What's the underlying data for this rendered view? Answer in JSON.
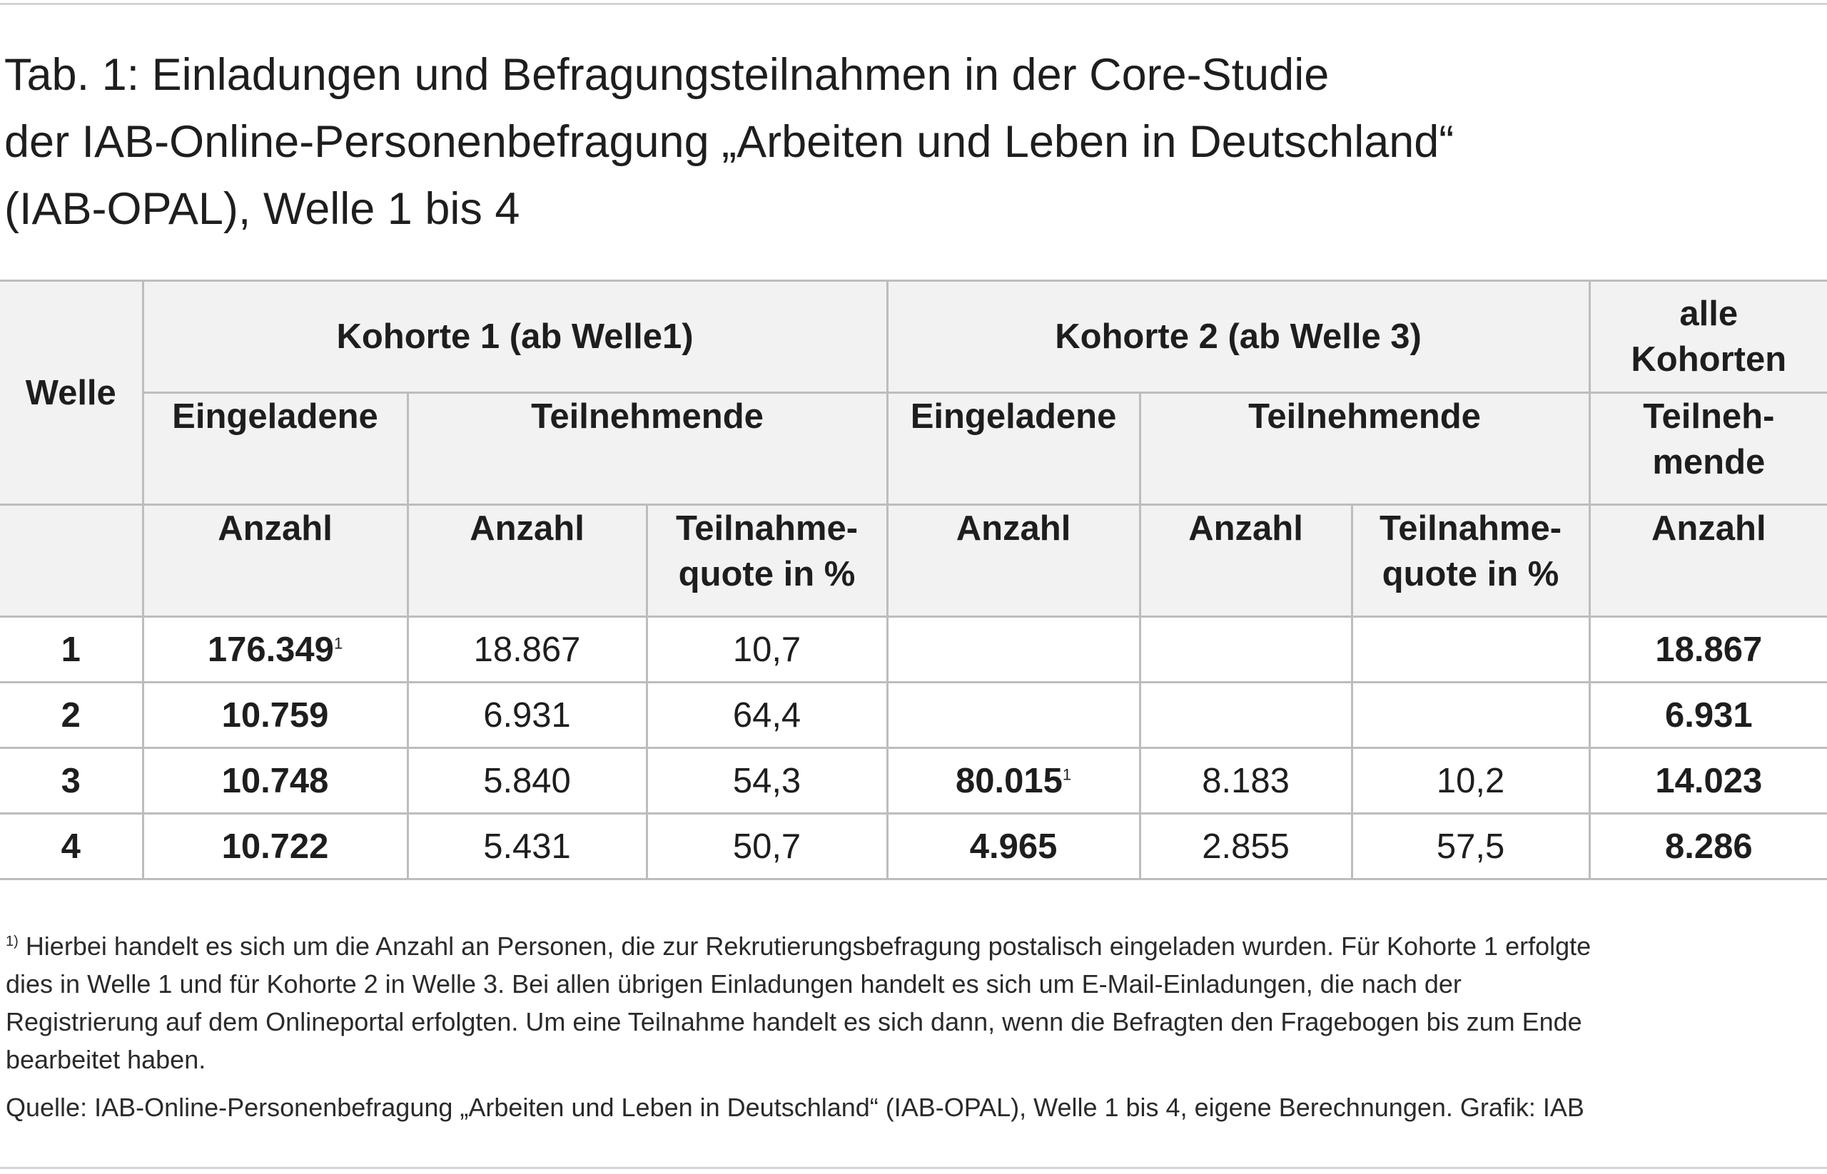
{
  "title": {
    "line1": "Tab. 1: Einladungen und Befragungsteilnahmen in der Core-Studie",
    "line2": "der IAB-Online-Personenbefragung „Arbeiten und Leben in Deutschland“",
    "line3": "(IAB-OPAL), Welle 1 bis 4"
  },
  "table": {
    "welle_header": "Welle",
    "kohorte1": "Kohorte 1 (ab Welle1)",
    "kohorte2": "Kohorte 2 (ab Welle 3)",
    "alle_line1": "alle",
    "alle_line2": "Kohorten",
    "eingeladene": "Eingeladene",
    "teilnehmende": "Teilnehmende",
    "teilneh_line1": "Teilneh-",
    "teilneh_line2": "mende",
    "anzahl": "Anzahl",
    "quote_line1": "Teilnahme-",
    "quote_line2": "quote in %",
    "footnote_marker": "1",
    "rows": [
      {
        "welle": "1",
        "k1_eingeladen": "176.349",
        "k1_eingeladen_fn": "1",
        "k1_teilnehmende": "18.867",
        "k1_quote": "10,7",
        "k2_eingeladen": "",
        "k2_eingeladen_fn": "",
        "k2_teilnehmende": "",
        "k2_quote": "",
        "alle": "18.867"
      },
      {
        "welle": "2",
        "k1_eingeladen": "10.759",
        "k1_eingeladen_fn": "",
        "k1_teilnehmende": "6.931",
        "k1_quote": "64,4",
        "k2_eingeladen": "",
        "k2_eingeladen_fn": "",
        "k2_teilnehmende": "",
        "k2_quote": "",
        "alle": "6.931"
      },
      {
        "welle": "3",
        "k1_eingeladen": "10.748",
        "k1_eingeladen_fn": "",
        "k1_teilnehmende": "5.840",
        "k1_quote": "54,3",
        "k2_eingeladen": "80.015",
        "k2_eingeladen_fn": "1",
        "k2_teilnehmende": "8.183",
        "k2_quote": "10,2",
        "alle": "14.023"
      },
      {
        "welle": "4",
        "k1_eingeladen": "10.722",
        "k1_eingeladen_fn": "",
        "k1_teilnehmende": "5.431",
        "k1_quote": "50,7",
        "k2_eingeladen": "4.965",
        "k2_eingeladen_fn": "",
        "k2_teilnehmende": "2.855",
        "k2_quote": "57,5",
        "alle": "8.286"
      }
    ]
  },
  "footnote": {
    "marker": "1)",
    "line1": "Hierbei handelt es sich um die Anzahl an Personen, die zur Rekrutierungsbefragung postalisch eingeladen wurden. Für Kohorte 1 erfolgte",
    "line2": "dies in Welle 1 und für Kohorte 2 in Welle 3. Bei allen übrigen Einladungen handelt es sich um E-Mail-Einladungen, die nach der",
    "line3": "Registrierung auf dem Onlineportal erfolgten. Um eine Teilnahme handelt es sich dann, wenn die Befragten den Fragebogen bis zum Ende",
    "line4": "bearbeitet haben."
  },
  "source": "Quelle: IAB-Online-Personenbefragung „Arbeiten und Leben in Deutschland“ (IAB-OPAL), Welle 1 bis 4, eigene Berechnungen. Grafik: IAB"
}
